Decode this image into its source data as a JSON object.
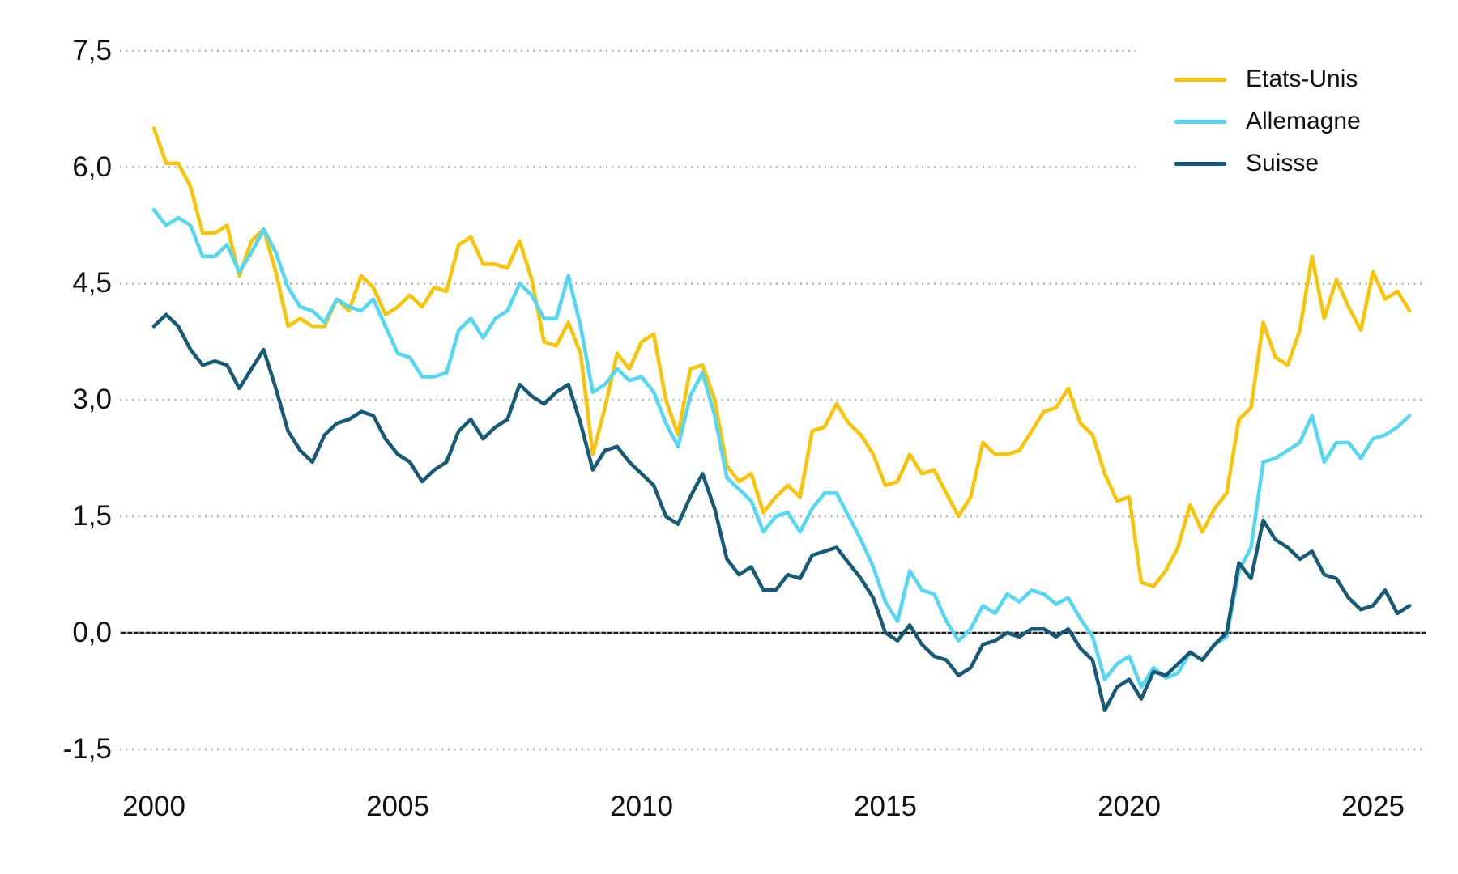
{
  "chart_data": {
    "type": "line",
    "title": "",
    "xlabel": "",
    "ylabel": "",
    "unit_hint": "percent (yields), decimal comma French formatting",
    "x_start": 2000.0,
    "x_step": 0.25,
    "x_end": 2025.75,
    "x_tick_years": [
      2000,
      2005,
      2010,
      2015,
      2020,
      2025
    ],
    "x_tick_labels": [
      "2000",
      "2005",
      "2010",
      "2015",
      "2020",
      "2025"
    ],
    "y_tick_values": [
      7.5,
      6.0,
      4.5,
      3.0,
      1.5,
      0.0,
      -1.5
    ],
    "y_tick_labels": [
      "7,5",
      "6,0",
      "4,5",
      "3,0",
      "1,5",
      "0,0",
      "-1,5"
    ],
    "ylim": [
      -1.5,
      7.5
    ],
    "grid": "dotted horizontal lines, solid black line at 0,0",
    "grid_color": "#b9b9b9",
    "zero_line_color": "#1a1a1a",
    "text_color": "#111111",
    "legend_position": "top-right",
    "legend_items": [
      "Etats-Unis",
      "Allemagne",
      "Suisse"
    ],
    "series": [
      {
        "name": "Etats-Unis",
        "color": "#F9C405",
        "values": [
          6.5,
          6.05,
          6.05,
          5.75,
          5.15,
          5.15,
          5.25,
          4.6,
          5.05,
          5.2,
          4.65,
          3.95,
          4.05,
          3.95,
          3.95,
          4.3,
          4.15,
          4.6,
          4.45,
          4.1,
          4.2,
          4.35,
          4.2,
          4.45,
          4.4,
          5.0,
          5.1,
          4.75,
          4.75,
          4.7,
          5.05,
          4.55,
          3.75,
          3.7,
          4.0,
          3.6,
          2.3,
          2.9,
          3.6,
          3.4,
          3.75,
          3.85,
          3.0,
          2.55,
          3.4,
          3.45,
          3.0,
          2.15,
          1.95,
          2.05,
          1.55,
          1.75,
          1.9,
          1.75,
          2.6,
          2.65,
          2.95,
          2.7,
          2.55,
          2.3,
          1.9,
          1.95,
          2.3,
          2.05,
          2.1,
          1.8,
          1.5,
          1.75,
          2.45,
          2.3,
          2.3,
          2.35,
          2.6,
          2.85,
          2.9,
          3.15,
          2.7,
          2.55,
          2.05,
          1.7,
          1.75,
          0.65,
          0.6,
          0.8,
          1.1,
          1.65,
          1.3,
          1.6,
          1.8,
          2.75,
          2.9,
          4.0,
          3.55,
          3.45,
          3.9,
          4.85,
          4.05,
          4.55,
          4.2,
          3.9,
          4.65,
          4.3,
          4.4,
          4.15
        ]
      },
      {
        "name": "Allemagne",
        "color": "#53D7F2",
        "values": [
          5.45,
          5.25,
          5.35,
          5.25,
          4.85,
          4.85,
          5.0,
          4.65,
          4.9,
          5.2,
          4.9,
          4.45,
          4.2,
          4.15,
          4.0,
          4.3,
          4.2,
          4.15,
          4.3,
          3.95,
          3.6,
          3.55,
          3.3,
          3.3,
          3.35,
          3.9,
          4.05,
          3.8,
          4.05,
          4.15,
          4.5,
          4.35,
          4.05,
          4.05,
          4.6,
          3.95,
          3.1,
          3.2,
          3.4,
          3.25,
          3.3,
          3.1,
          2.7,
          2.4,
          3.05,
          3.35,
          2.8,
          2.0,
          1.85,
          1.7,
          1.3,
          1.5,
          1.55,
          1.3,
          1.6,
          1.8,
          1.8,
          1.5,
          1.2,
          0.85,
          0.4,
          0.15,
          0.8,
          0.55,
          0.5,
          0.15,
          -0.1,
          0.05,
          0.35,
          0.25,
          0.5,
          0.4,
          0.55,
          0.5,
          0.37,
          0.45,
          0.18,
          -0.05,
          -0.6,
          -0.4,
          -0.3,
          -0.7,
          -0.45,
          -0.58,
          -0.52,
          -0.25,
          -0.35,
          -0.15,
          -0.05,
          0.8,
          1.1,
          2.2,
          2.25,
          2.35,
          2.45,
          2.8,
          2.2,
          2.45,
          2.45,
          2.25,
          2.5,
          2.55,
          2.65,
          2.8
        ]
      },
      {
        "name": "Suisse",
        "color": "#175A78",
        "values": [
          3.95,
          4.1,
          3.95,
          3.65,
          3.45,
          3.5,
          3.45,
          3.15,
          3.4,
          3.65,
          3.15,
          2.6,
          2.35,
          2.2,
          2.55,
          2.7,
          2.75,
          2.85,
          2.8,
          2.5,
          2.3,
          2.2,
          1.95,
          2.1,
          2.2,
          2.6,
          2.75,
          2.5,
          2.65,
          2.75,
          3.2,
          3.05,
          2.95,
          3.1,
          3.2,
          2.7,
          2.1,
          2.35,
          2.4,
          2.2,
          2.05,
          1.9,
          1.5,
          1.4,
          1.75,
          2.05,
          1.6,
          0.95,
          0.75,
          0.85,
          0.55,
          0.55,
          0.75,
          0.7,
          1.0,
          1.05,
          1.1,
          0.9,
          0.7,
          0.45,
          0.0,
          -0.1,
          0.1,
          -0.15,
          -0.3,
          -0.35,
          -0.55,
          -0.45,
          -0.15,
          -0.1,
          0.0,
          -0.05,
          0.05,
          0.05,
          -0.05,
          0.05,
          -0.2,
          -0.35,
          -1.0,
          -0.7,
          -0.6,
          -0.85,
          -0.5,
          -0.55,
          -0.4,
          -0.25,
          -0.35,
          -0.15,
          0.0,
          0.9,
          0.7,
          1.45,
          1.2,
          1.1,
          0.95,
          1.05,
          0.75,
          0.7,
          0.45,
          0.3,
          0.35,
          0.55,
          0.25,
          0.35
        ]
      }
    ]
  }
}
